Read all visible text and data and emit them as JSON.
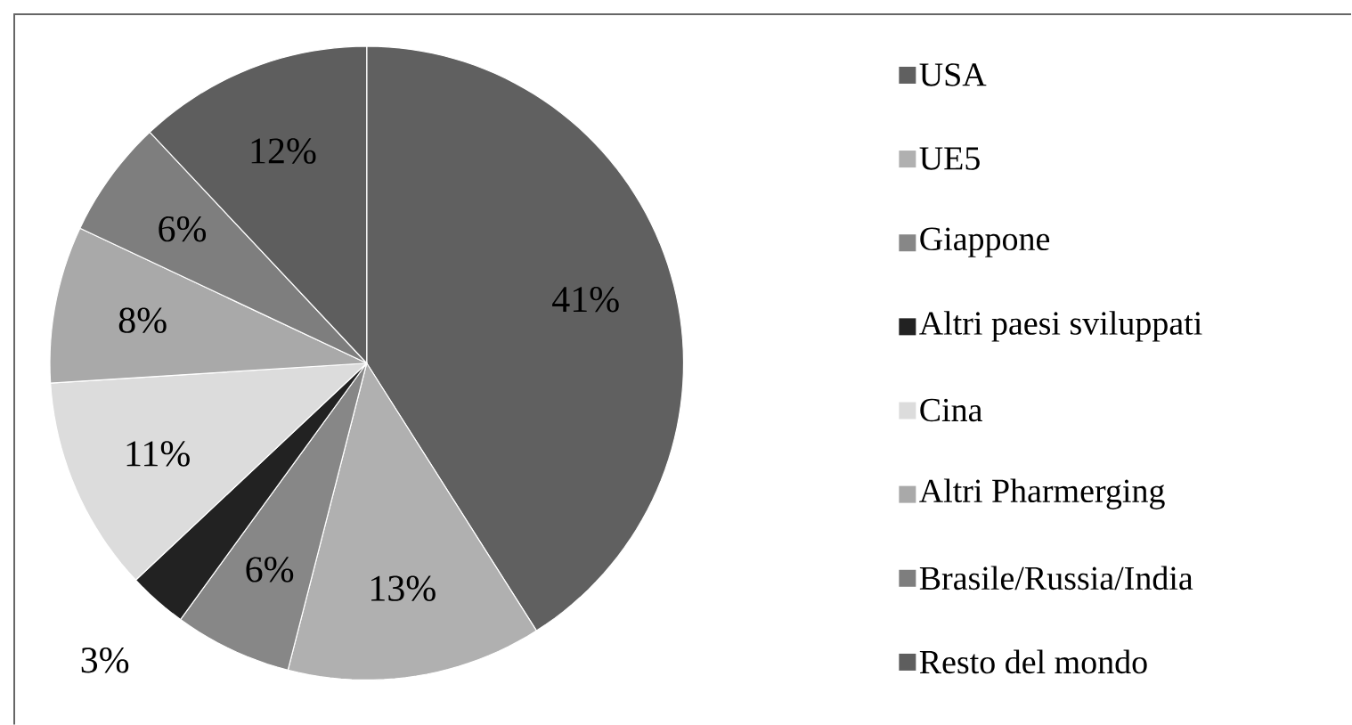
{
  "chart_data": {
    "type": "pie",
    "categories": [
      "USA",
      "UE5",
      "Giappone",
      "Altri paesi sviluppati",
      "Cina",
      "Altri Pharmerging",
      "Brasile/Russia/India",
      "Resto del mondo"
    ],
    "values": [
      41,
      13,
      6,
      3,
      11,
      8,
      6,
      12
    ],
    "value_labels": [
      "41%",
      "13%",
      "6%",
      "3%",
      "11%",
      "8%",
      "6%",
      "12%"
    ],
    "colors": [
      "#606060",
      "#b0b0b0",
      "#878787",
      "#222222",
      "#dcdcdc",
      "#a9a9a9",
      "#7e7e7e",
      "#5e5e5e"
    ],
    "legend": "right"
  }
}
